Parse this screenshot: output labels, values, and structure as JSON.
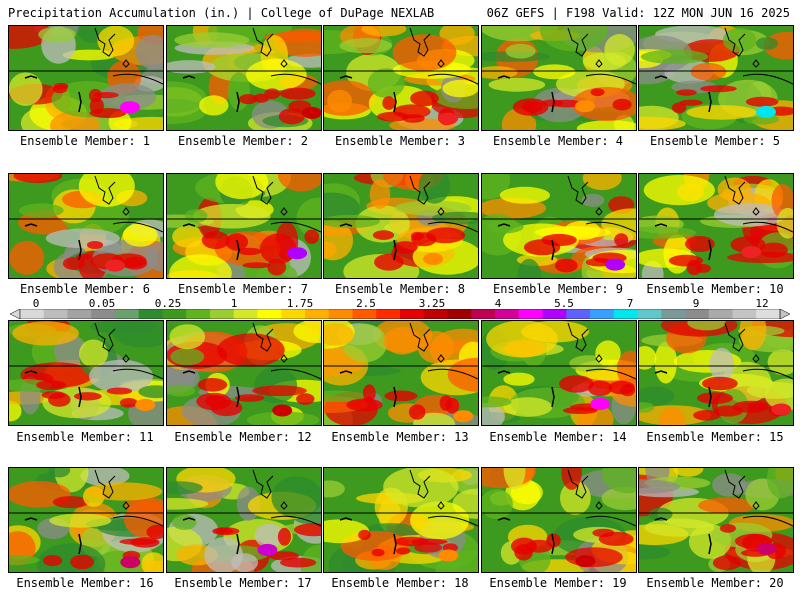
{
  "header": {
    "left": "Precipitation Accumulation (in.) | College of DuPage NEXLAB",
    "right": "06Z GEFS | F198 Valid: 12Z MON JUN 16 2025"
  },
  "members": [
    {
      "label": "Ensemble Member: 1",
      "max_color": "#ff00ff"
    },
    {
      "label": "Ensemble Member: 2",
      "max_color": "#cc0000"
    },
    {
      "label": "Ensemble Member: 3",
      "max_color": "#ee2222"
    },
    {
      "label": "Ensemble Member: 4",
      "max_color": "#ff8c00"
    },
    {
      "label": "Ensemble Member: 5",
      "max_color": "#00e5ee"
    },
    {
      "label": "Ensemble Member: 6",
      "max_color": "#ee2222"
    },
    {
      "label": "Ensemble Member: 7",
      "max_color": "#b000ff"
    },
    {
      "label": "Ensemble Member: 8",
      "max_color": "#ff8c00"
    },
    {
      "label": "Ensemble Member: 9",
      "max_color": "#b000ff"
    },
    {
      "label": "Ensemble Member: 10",
      "max_color": "#ee2222"
    },
    {
      "label": "Ensemble Member: 11",
      "max_color": "#ff8c00"
    },
    {
      "label": "Ensemble Member: 12",
      "max_color": "#cc0000"
    },
    {
      "label": "Ensemble Member: 13",
      "max_color": "#ff8c00"
    },
    {
      "label": "Ensemble Member: 14",
      "max_color": "#ff00ff"
    },
    {
      "label": "Ensemble Member: 15",
      "max_color": "#ee2222"
    },
    {
      "label": "Ensemble Member: 16",
      "max_color": "#cc0066"
    },
    {
      "label": "Ensemble Member: 17",
      "max_color": "#cc00cc"
    },
    {
      "label": "Ensemble Member: 18",
      "max_color": "#ff8c00"
    },
    {
      "label": "Ensemble Member: 19",
      "max_color": "#cc0000"
    },
    {
      "label": "Ensemble Member: 20",
      "max_color": "#cc0066"
    }
  ],
  "colorbar": {
    "tick_labels": [
      "0",
      "0.05",
      "0.25",
      "1",
      "1.75",
      "2.5",
      "3.25",
      "4",
      "5.5",
      "7",
      "9",
      "12"
    ],
    "colors": [
      "#d9d9d9",
      "#bdbdbd",
      "#a3a3a3",
      "#8c8c8c",
      "#6b9f6b",
      "#2e8b2e",
      "#3d9a1f",
      "#5fb31f",
      "#9acd32",
      "#d4e82a",
      "#ffff00",
      "#ffd700",
      "#ffb000",
      "#ff8c00",
      "#ff5a00",
      "#ff2a00",
      "#e60000",
      "#c00000",
      "#a00000",
      "#c00050",
      "#d4009a",
      "#ff00ff",
      "#b000ff",
      "#6060ff",
      "#3aa0ff",
      "#00e5ee",
      "#60c8c8",
      "#7a9a9a",
      "#8c8c8c",
      "#aaaaaa",
      "#c4c4c4",
      "#dedede"
    ]
  }
}
